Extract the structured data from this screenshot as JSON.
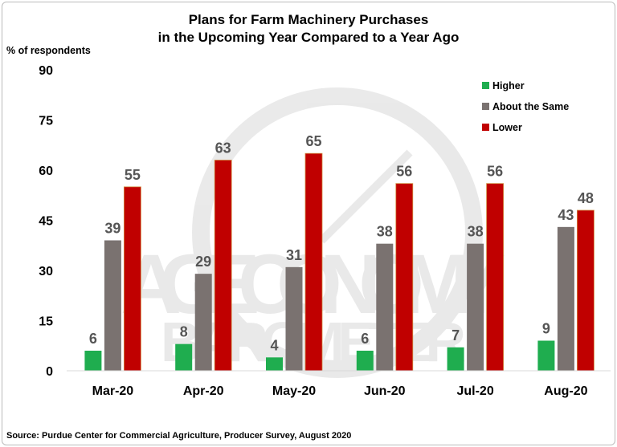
{
  "chart_data": {
    "type": "bar",
    "title_line1": "Plans for Farm Machinery Purchases",
    "title_line2": "in the Upcoming Year Compared to a Year Ago",
    "ylabel": "% of respondents",
    "xlabel": "",
    "ylim": [
      0,
      90
    ],
    "yticks": [
      0,
      15,
      30,
      45,
      60,
      75,
      90
    ],
    "grid": false,
    "legend_position": "top-right",
    "categories": [
      "Mar-20",
      "Apr-20",
      "May-20",
      "Jun-20",
      "Jul-20",
      "Aug-20"
    ],
    "series": [
      {
        "name": "Higher",
        "color": "#1fad4f",
        "values": [
          6,
          8,
          4,
          6,
          7,
          9
        ]
      },
      {
        "name": "About the Same",
        "color": "#7a7270",
        "values": [
          39,
          29,
          31,
          38,
          38,
          43
        ]
      },
      {
        "name": "Lower",
        "color": "#c00000",
        "values": [
          55,
          63,
          65,
          56,
          56,
          48
        ]
      }
    ],
    "source": "Source: Purdue Center for Commercial Agriculture, Producer Survey, August 2020",
    "watermark": "AG ECONOMY BAROMETER"
  }
}
